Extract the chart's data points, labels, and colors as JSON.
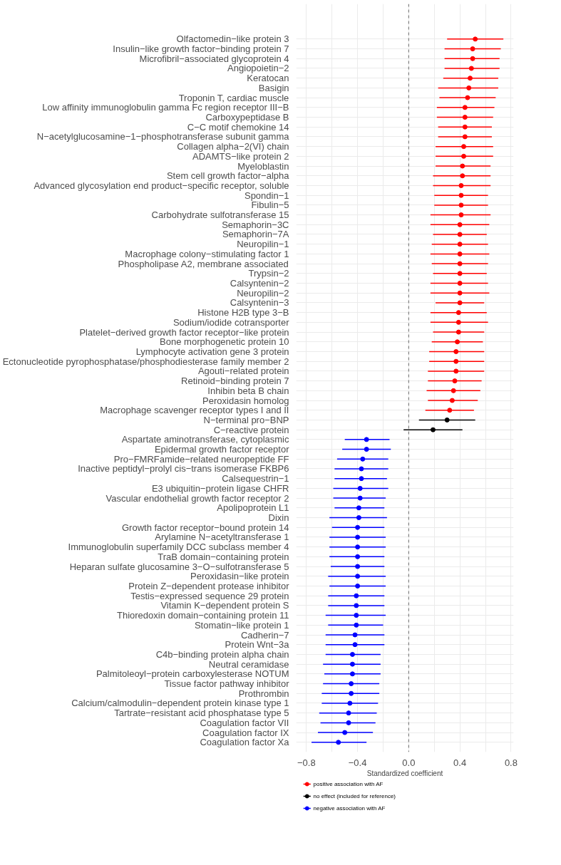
{
  "chart_data": {
    "type": "scatter",
    "orientation": "horizontal",
    "xlabel": "Standardized coefficient",
    "categories": [
      "Olfactomedin−like protein 3",
      "Insulin−like growth factor−binding protein 7",
      "Microfibril−associated glycoprotein 4",
      "Angiopoietin−2",
      "Keratocan",
      "Basigin",
      "Troponin T, cardiac muscle",
      "Low affinity immunoglobulin gamma Fc region receptor III−B",
      "Carboxypeptidase B",
      "C−C motif chemokine 14",
      "N−acetylglucosamine−1−phosphotransferase subunit gamma",
      "Collagen alpha−2(VI) chain",
      "ADAMTS−like protein 2",
      "Myeloblastin",
      "Stem cell growth factor−alpha",
      "Advanced glycosylation end product−specific receptor, soluble",
      "Spondin−1",
      "Fibulin−5",
      "Carbohydrate sulfotransferase 15",
      "Semaphorin−3C",
      "Semaphorin−7A",
      "Neuropilin−1",
      "Macrophage colony−stimulating factor 1",
      "Phospholipase A2, membrane associated",
      "Trypsin−2",
      "Calsyntenin−2",
      "Neuropilin−2",
      "Calsyntenin−3",
      "Histone H2B type 3−B",
      "Sodium/iodide cotransporter",
      "Platelet−derived growth factor receptor−like protein",
      "Bone morphogenetic protein 10",
      "Lymphocyte activation gene 3 protein",
      "Ectonucleotide pyrophosphatase/phosphodiesterase family member 2",
      "Agouti−related protein",
      "Retinoid−binding protein 7",
      "Inhibin beta B chain",
      "Peroxidasin homolog",
      "Macrophage scavenger receptor types I and II",
      "N−terminal pro−BNP",
      "C−reactive protein",
      "Aspartate aminotransferase, cytoplasmic",
      "Epidermal growth factor receptor",
      "Pro−FMRFamide−related neuropeptide FF",
      "Inactive peptidyl−prolyl cis−trans isomerase FKBP6",
      "Calsequestrin−1",
      "E3 ubiquitin−protein ligase CHFR",
      "Vascular endothelial growth factor receptor 2",
      "Apolipoprotein L1",
      "Dixin",
      "Growth factor receptor−bound protein 14",
      "Arylamine N−acetyltransferase 1",
      "Immunoglobulin superfamily DCC subclass member 4",
      "TraB domain−containing protein",
      "Heparan sulfate glucosamine 3−O−sulfotransferase 5",
      "Peroxidasin−like protein",
      "Protein Z−dependent protease inhibitor",
      "Testis−expressed sequence 29 protein",
      "Vitamin K−dependent protein S",
      "Thioredoxin domain−containing protein 11",
      "Stomatin−like protein 1",
      "Cadherin−7",
      "Protein Wnt−3a",
      "C4b−binding protein alpha chain",
      "Neutral ceramidase",
      "Palmitoleoyl−protein carboxylesterase NOTUM",
      "Tissue factor pathway inhibitor",
      "Prothrombin",
      "Calcium/calmodulin−dependent protein kinase type 1",
      "Tartrate−resistant acid phosphatase type 5",
      "Coagulation factor VII",
      "Coagulation factor IX",
      "Coagulation factor Xa"
    ],
    "series": [
      {
        "name": "positive association with AF",
        "color": "#ff0000",
        "values": [
          0.52,
          0.5,
          0.5,
          0.49,
          0.48,
          0.47,
          0.46,
          0.44,
          0.44,
          0.44,
          0.44,
          0.43,
          0.43,
          0.42,
          0.42,
          0.41,
          0.41,
          0.41,
          0.41,
          0.4,
          0.4,
          0.4,
          0.4,
          0.4,
          0.4,
          0.4,
          0.4,
          0.4,
          0.39,
          0.39,
          0.39,
          0.38,
          0.37,
          0.37,
          0.37,
          0.36,
          0.35,
          0.34,
          0.32,
          null,
          null,
          null,
          null,
          null,
          null,
          null,
          null,
          null,
          null,
          null,
          null,
          null,
          null,
          null,
          null,
          null,
          null,
          null,
          null,
          null,
          null,
          null,
          null,
          null,
          null,
          null,
          null,
          null,
          null,
          null,
          null,
          null,
          null
        ],
        "errors": [
          [
            0.3,
            0.74
          ],
          [
            0.28,
            0.72
          ],
          [
            0.28,
            0.71
          ],
          [
            0.28,
            0.71
          ],
          [
            0.27,
            0.7
          ],
          [
            0.23,
            0.7
          ],
          [
            0.24,
            0.68
          ],
          [
            0.22,
            0.67
          ],
          [
            0.22,
            0.66
          ],
          [
            0.23,
            0.65
          ],
          [
            0.23,
            0.65
          ],
          [
            0.21,
            0.66
          ],
          [
            0.21,
            0.66
          ],
          [
            0.21,
            0.64
          ],
          [
            0.19,
            0.64
          ],
          [
            0.19,
            0.64
          ],
          [
            0.2,
            0.62
          ],
          [
            0.2,
            0.62
          ],
          [
            0.17,
            0.64
          ],
          [
            0.17,
            0.63
          ],
          [
            0.19,
            0.61
          ],
          [
            0.18,
            0.62
          ],
          [
            0.17,
            0.63
          ],
          [
            0.18,
            0.62
          ],
          [
            0.19,
            0.61
          ],
          [
            0.17,
            0.62
          ],
          [
            0.17,
            0.63
          ],
          [
            0.21,
            0.59
          ],
          [
            0.17,
            0.61
          ],
          [
            0.17,
            0.62
          ],
          [
            0.19,
            0.59
          ],
          [
            0.18,
            0.58
          ],
          [
            0.16,
            0.59
          ],
          [
            0.16,
            0.59
          ],
          [
            0.15,
            0.59
          ],
          [
            0.15,
            0.57
          ],
          [
            0.14,
            0.56
          ],
          [
            0.15,
            0.54
          ],
          [
            0.13,
            0.51
          ],
          null,
          null,
          null,
          null,
          null,
          null,
          null,
          null,
          null,
          null,
          null,
          null,
          null,
          null,
          null,
          null,
          null,
          null,
          null,
          null,
          null,
          null,
          null,
          null,
          null,
          null,
          null,
          null,
          null,
          null,
          null,
          null,
          null,
          null
        ]
      },
      {
        "name": "no effect (included for reference)",
        "color": "#000000",
        "values": [
          null,
          null,
          null,
          null,
          null,
          null,
          null,
          null,
          null,
          null,
          null,
          null,
          null,
          null,
          null,
          null,
          null,
          null,
          null,
          null,
          null,
          null,
          null,
          null,
          null,
          null,
          null,
          null,
          null,
          null,
          null,
          null,
          null,
          null,
          null,
          null,
          null,
          null,
          null,
          0.3,
          0.19,
          null,
          null,
          null,
          null,
          null,
          null,
          null,
          null,
          null,
          null,
          null,
          null,
          null,
          null,
          null,
          null,
          null,
          null,
          null,
          null,
          null,
          null,
          null,
          null,
          null,
          null,
          null,
          null,
          null,
          null,
          null,
          null
        ],
        "errors": [
          null,
          null,
          null,
          null,
          null,
          null,
          null,
          null,
          null,
          null,
          null,
          null,
          null,
          null,
          null,
          null,
          null,
          null,
          null,
          null,
          null,
          null,
          null,
          null,
          null,
          null,
          null,
          null,
          null,
          null,
          null,
          null,
          null,
          null,
          null,
          null,
          null,
          null,
          null,
          [
            0.08,
            0.52
          ],
          [
            -0.04,
            0.42
          ],
          null,
          null,
          null,
          null,
          null,
          null,
          null,
          null,
          null,
          null,
          null,
          null,
          null,
          null,
          null,
          null,
          null,
          null,
          null,
          null,
          null,
          null,
          null,
          null,
          null,
          null,
          null,
          null,
          null,
          null,
          null,
          null
        ]
      },
      {
        "name": "negative association with AF",
        "color": "#0000ff",
        "values": [
          null,
          null,
          null,
          null,
          null,
          null,
          null,
          null,
          null,
          null,
          null,
          null,
          null,
          null,
          null,
          null,
          null,
          null,
          null,
          null,
          null,
          null,
          null,
          null,
          null,
          null,
          null,
          null,
          null,
          null,
          null,
          null,
          null,
          null,
          null,
          null,
          null,
          null,
          null,
          null,
          null,
          -0.33,
          -0.33,
          -0.36,
          -0.37,
          -0.37,
          -0.38,
          -0.38,
          -0.39,
          -0.39,
          -0.4,
          -0.4,
          -0.4,
          -0.4,
          -0.4,
          -0.4,
          -0.4,
          -0.41,
          -0.41,
          -0.41,
          -0.41,
          -0.42,
          -0.42,
          -0.44,
          -0.44,
          -0.44,
          -0.45,
          -0.45,
          -0.46,
          -0.47,
          -0.47,
          -0.5,
          -0.55
        ],
        "errors": [
          null,
          null,
          null,
          null,
          null,
          null,
          null,
          null,
          null,
          null,
          null,
          null,
          null,
          null,
          null,
          null,
          null,
          null,
          null,
          null,
          null,
          null,
          null,
          null,
          null,
          null,
          null,
          null,
          null,
          null,
          null,
          null,
          null,
          null,
          null,
          null,
          null,
          null,
          null,
          null,
          null,
          [
            -0.5,
            -0.15
          ],
          [
            -0.52,
            -0.14
          ],
          [
            -0.56,
            -0.16
          ],
          [
            -0.58,
            -0.16
          ],
          [
            -0.58,
            -0.17
          ],
          [
            -0.59,
            -0.16
          ],
          [
            -0.59,
            -0.18
          ],
          [
            -0.58,
            -0.19
          ],
          [
            -0.62,
            -0.17
          ],
          [
            -0.6,
            -0.19
          ],
          [
            -0.62,
            -0.18
          ],
          [
            -0.62,
            -0.18
          ],
          [
            -0.62,
            -0.19
          ],
          [
            -0.61,
            -0.19
          ],
          [
            -0.63,
            -0.18
          ],
          [
            -0.62,
            -0.18
          ],
          [
            -0.63,
            -0.19
          ],
          [
            -0.63,
            -0.19
          ],
          [
            -0.65,
            -0.18
          ],
          [
            -0.63,
            -0.2
          ],
          [
            -0.65,
            -0.19
          ],
          [
            -0.65,
            -0.19
          ],
          [
            -0.65,
            -0.22
          ],
          [
            -0.67,
            -0.22
          ],
          [
            -0.66,
            -0.22
          ],
          [
            -0.67,
            -0.23
          ],
          [
            -0.68,
            -0.23
          ],
          [
            -0.68,
            -0.24
          ],
          [
            -0.7,
            -0.25
          ],
          [
            -0.69,
            -0.26
          ],
          [
            -0.71,
            -0.28
          ],
          [
            -0.76,
            -0.33
          ]
        ]
      }
    ],
    "xlim": [
      -0.88,
      0.82
    ],
    "xticks": [
      -0.8,
      {
        "value": -0.6,
        "label": null
      },
      -0.4,
      {
        "value": -0.2,
        "label": null
      },
      {
        "value": 0,
        "label": "0.0"
      },
      {
        "value": 0.2,
        "label": null
      },
      0.4,
      {
        "value": 0.6,
        "label": null
      },
      0.8
    ],
    "ref_lines": [
      {
        "axis": "x",
        "value": 0,
        "color": "#808080",
        "line_style": "dashed"
      }
    ],
    "grid": true,
    "legend": "bottom left",
    "marker": "circle",
    "line_style": "solid"
  }
}
